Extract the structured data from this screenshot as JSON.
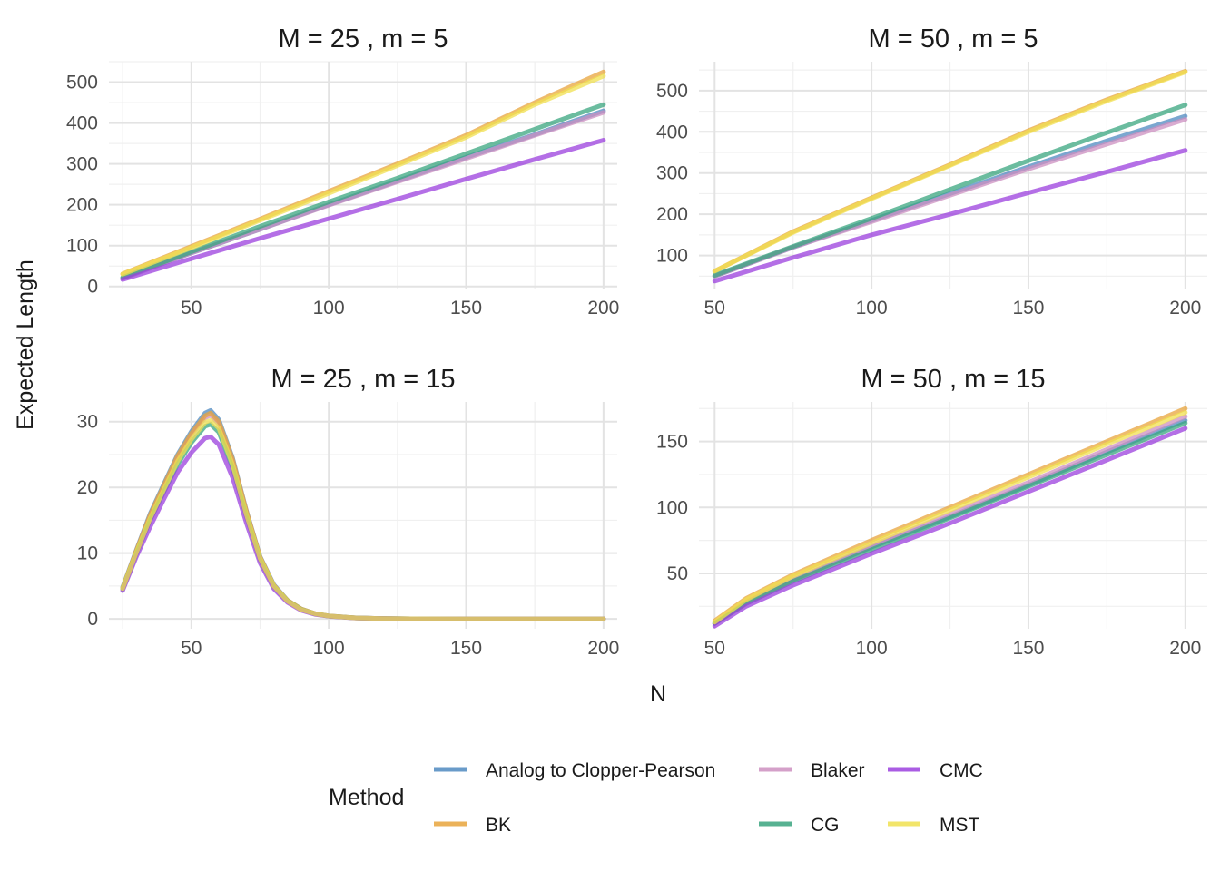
{
  "chart_data": {
    "type": "line",
    "xlabel": "N",
    "ylabel": "Expected Length",
    "legend": {
      "title": "Method",
      "placement": "bottom",
      "entries": [
        {
          "name": "Analog to Clopper-Pearson",
          "color": "#4f89c0"
        },
        {
          "name": "Blaker",
          "color": "#cc8fc0"
        },
        {
          "name": "CMC",
          "color": "#9b3fde"
        },
        {
          "name": "BK",
          "color": "#e8a43c"
        },
        {
          "name": "CG",
          "color": "#3aa57f"
        },
        {
          "name": "MST",
          "color": "#f0e050"
        }
      ]
    },
    "grid": true,
    "panels": [
      {
        "title": "M = 25 , m = 5",
        "xlim": [
          20,
          205
        ],
        "ylim": [
          -5,
          550
        ],
        "xticks": [
          50,
          100,
          150,
          200
        ],
        "yticks": [
          0,
          100,
          200,
          300,
          400,
          500
        ],
        "x": [
          25,
          50,
          75,
          100,
          125,
          150,
          175,
          200
        ],
        "series": [
          {
            "name": "Analog to Clopper-Pearson",
            "values": [
              20,
              82,
              140,
              200,
              258,
              316,
              372,
              430
            ]
          },
          {
            "name": "Blaker",
            "values": [
              20,
              82,
              140,
              199,
              256,
              313,
              370,
              426
            ]
          },
          {
            "name": "CMC",
            "values": [
              17,
              68,
              118,
              166,
              214,
              263,
              311,
              358
            ]
          },
          {
            "name": "BK",
            "values": [
              31,
              98,
              165,
              233,
              300,
              370,
              450,
              525
            ]
          },
          {
            "name": "CG",
            "values": [
              22,
              85,
              147,
              207,
              265,
              325,
              385,
              445
            ]
          },
          {
            "name": "MST",
            "values": [
              30,
              95,
              162,
              228,
              296,
              365,
              445,
              515
            ]
          }
        ]
      },
      {
        "title": "M = 50 , m = 5",
        "xlim": [
          45,
          207
        ],
        "ylim": [
          20,
          570
        ],
        "xticks": [
          50,
          100,
          150,
          200
        ],
        "yticks": [
          100,
          200,
          300,
          400,
          500
        ],
        "x": [
          50,
          75,
          100,
          125,
          150,
          175,
          200
        ],
        "series": [
          {
            "name": "Analog to Clopper-Pearson",
            "values": [
              50,
              120,
              185,
              250,
              315,
              378,
              438
            ]
          },
          {
            "name": "Blaker",
            "values": [
              50,
              120,
              182,
              246,
              310,
              370,
              430
            ]
          },
          {
            "name": "CMC",
            "values": [
              38,
              95,
              150,
              200,
              252,
              303,
              355
            ]
          },
          {
            "name": "BK",
            "values": [
              62,
              158,
              240,
              320,
              403,
              478,
              547
            ]
          },
          {
            "name": "CG",
            "values": [
              52,
              122,
              190,
              260,
              330,
              398,
              465
            ]
          },
          {
            "name": "MST",
            "values": [
              62,
              156,
              238,
              318,
              400,
              475,
              545
            ]
          }
        ]
      },
      {
        "title": "M = 25 , m = 15",
        "xlim": [
          20,
          205
        ],
        "ylim": [
          -1.5,
          33
        ],
        "xticks": [
          50,
          100,
          150,
          200
        ],
        "yticks": [
          0,
          10,
          20,
          30
        ],
        "x": [
          25,
          30,
          35,
          40,
          45,
          50,
          55,
          57,
          60,
          65,
          70,
          75,
          80,
          85,
          90,
          95,
          100,
          110,
          120,
          130,
          150,
          175,
          200
        ],
        "series": [
          {
            "name": "Analog to Clopper-Pearson",
            "values": [
              4.8,
              10.5,
              16.0,
              20.5,
              25.0,
              28.5,
              31.3,
              31.7,
              30.3,
              24.5,
              16.5,
              9.5,
              5.2,
              2.8,
              1.5,
              0.8,
              0.45,
              0.15,
              0.05,
              0.02,
              0,
              0,
              0
            ]
          },
          {
            "name": "Blaker",
            "values": [
              4.6,
              10.2,
              15.6,
              20.0,
              24.5,
              27.9,
              30.6,
              31.0,
              29.6,
              24.0,
              16.2,
              9.3,
              5.1,
              2.7,
              1.4,
              0.8,
              0.44,
              0.15,
              0.05,
              0.02,
              0,
              0,
              0
            ]
          },
          {
            "name": "CMC",
            "values": [
              4.3,
              9.5,
              14.0,
              18.2,
              22.3,
              25.3,
              27.5,
              27.7,
              26.5,
              21.5,
              14.6,
              8.5,
              4.6,
              2.5,
              1.3,
              0.7,
              0.4,
              0.13,
              0.04,
              0.01,
              0,
              0,
              0
            ]
          },
          {
            "name": "BK",
            "values": [
              4.7,
              10.4,
              15.8,
              20.3,
              24.8,
              28.2,
              30.9,
              31.3,
              30.0,
              24.3,
              16.4,
              9.4,
              5.1,
              2.8,
              1.5,
              0.8,
              0.45,
              0.15,
              0.05,
              0.02,
              0,
              0,
              0
            ]
          },
          {
            "name": "CG",
            "values": [
              4.5,
              9.9,
              15.0,
              19.3,
              23.5,
              26.8,
              29.3,
              29.6,
              28.4,
              23.0,
              15.6,
              9.0,
              4.9,
              2.7,
              1.4,
              0.75,
              0.42,
              0.14,
              0.05,
              0.02,
              0,
              0,
              0
            ]
          },
          {
            "name": "MST",
            "values": [
              4.6,
              10.1,
              15.3,
              19.7,
              24.0,
              27.3,
              29.9,
              30.2,
              29.0,
              23.5,
              15.9,
              9.2,
              5.0,
              2.7,
              1.4,
              0.78,
              0.43,
              0.14,
              0.05,
              0.02,
              0,
              0,
              0
            ]
          }
        ]
      },
      {
        "title": "M = 50 , m = 15",
        "xlim": [
          45,
          207
        ],
        "ylim": [
          8,
          180
        ],
        "xticks": [
          50,
          100,
          150,
          200
        ],
        "yticks": [
          50,
          100,
          150
        ],
        "x": [
          50,
          60,
          75,
          100,
          125,
          150,
          175,
          200
        ],
        "series": [
          {
            "name": "Analog to Clopper-Pearson",
            "values": [
              12,
              28,
              45,
              70,
              93,
              117,
              142,
              166
            ]
          },
          {
            "name": "Blaker",
            "values": [
              12,
              28,
              45,
              71,
              95,
              119,
              144,
              169
            ]
          },
          {
            "name": "CMC",
            "values": [
              10,
              25,
              41,
              65,
              88,
              112,
              136,
              160
            ]
          },
          {
            "name": "BK",
            "values": [
              14,
              31,
              49,
              75,
              100,
              125,
              150,
              175
            ]
          },
          {
            "name": "CG",
            "values": [
              12,
              27,
              44,
              68,
              92,
              116,
              140,
              164
            ]
          },
          {
            "name": "MST",
            "values": [
              13,
              30,
              48,
              73,
              98,
              123,
              148,
              172
            ]
          }
        ]
      }
    ]
  }
}
